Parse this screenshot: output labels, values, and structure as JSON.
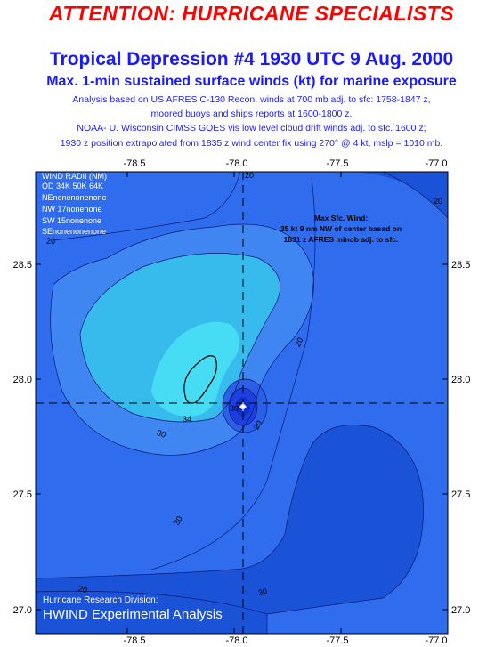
{
  "header": {
    "attention": "ATTENTION: HURRICANE SPECIALISTS",
    "title": "Tropical Depression #4 1930 UTC 9 Aug. 2000",
    "subtitle": "Max. 1-min sustained surface winds (kt) for marine exposure",
    "notes": [
      "Analysis based on US AFRES C-130 Recon. winds at 700 mb adj. to sfc: 1758-1847 z,",
      "moored buoys and ships reports at 1600-1800 z,",
      "NOAA- U. Wisconsin CIMSS GOES vis low level cloud drift winds adj. to sfc. 1600 z;",
      "1930 z position extrapolated from 1835 z wind center fix using 270° @ 4 kt, mslp = 1010 mb."
    ]
  },
  "map": {
    "lon_ticks": [
      "-78.5",
      "-78.0",
      "-77.5",
      "-77.0"
    ],
    "lat_ticks": [
      "28.5",
      "28.0",
      "27.5",
      "27.0"
    ],
    "lon_range": [
      -78.85,
      -77.0
    ],
    "lat_range": [
      26.95,
      29.0
    ],
    "center": {
      "lon": -77.95,
      "lat": 27.89
    },
    "wind_radii": {
      "title": "WIND RADII (NM)",
      "header": "QD 34K 50K 64K",
      "rows": [
        "NEnonenonenone",
        "NW 17nonenone",
        "SW 15nonenone",
        "SEnonenonenone"
      ]
    },
    "max_wind_note": [
      "Max Sfc. Wind:",
      "35 kt  9 nm NW of center based on",
      "1831 z AFRES minob adj. to sfc."
    ],
    "contour_labels": [
      "20",
      "20",
      "20",
      "20",
      "30",
      "30",
      "34",
      "20",
      "30",
      "30",
      "20"
    ],
    "credit": {
      "line1": "Hurricane Research Division:",
      "line2": "HWIND Experimental Analysis"
    },
    "colors": {
      "deep": "#1a52d8",
      "blue": "#2f6cee",
      "mid": "#3f86f2",
      "light": "#36bbec",
      "cyan": "#46dcf4",
      "core": "#1c3fe0"
    }
  }
}
